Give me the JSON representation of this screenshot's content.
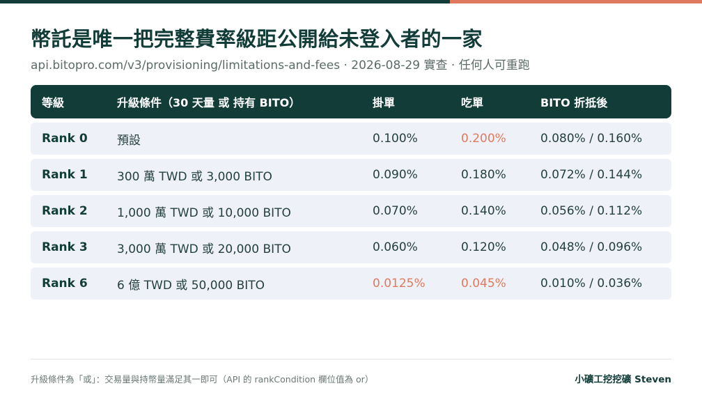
{
  "header": {
    "title": "幣託是唯一把完整費率級距公開給未登入者的一家",
    "subtitle": "api.bitopro.com/v3/provisioning/limitations-and-fees · 2026-08-29 實查 · 任何人可重跑"
  },
  "colors": {
    "primary": "#123c38",
    "accent": "#e07a5f",
    "row_bg": "#eef2f8"
  },
  "table": {
    "columns": [
      "等級",
      "升級條件（30 天量 或 持有 BITO）",
      "掛單",
      "吃單",
      "BITO 折抵後"
    ],
    "rows": [
      {
        "rank": "Rank 0",
        "condition": "預設",
        "maker": "0.100%",
        "taker": "0.200%",
        "bito": "0.080% / 0.160%",
        "maker_highlight": false,
        "taker_highlight": true
      },
      {
        "rank": "Rank 1",
        "condition": "300 萬 TWD 或 3,000 BITO",
        "maker": "0.090%",
        "taker": "0.180%",
        "bito": "0.072% / 0.144%",
        "maker_highlight": false,
        "taker_highlight": false
      },
      {
        "rank": "Rank 2",
        "condition": "1,000 萬 TWD 或 10,000 BITO",
        "maker": "0.070%",
        "taker": "0.140%",
        "bito": "0.056% / 0.112%",
        "maker_highlight": false,
        "taker_highlight": false
      },
      {
        "rank": "Rank 3",
        "condition": "3,000 萬 TWD 或 20,000 BITO",
        "maker": "0.060%",
        "taker": "0.120%",
        "bito": "0.048% / 0.096%",
        "maker_highlight": false,
        "taker_highlight": false
      },
      {
        "rank": "Rank 6",
        "condition": "6 億 TWD 或 50,000 BITO",
        "maker": "0.0125%",
        "taker": "0.045%",
        "bito": "0.010% / 0.036%",
        "maker_highlight": true,
        "taker_highlight": true
      }
    ]
  },
  "footer": {
    "note": "升級條件為「或」：交易量與持幣量滿足其一即可（API 的 rankCondition 欄位值為 or）",
    "brand": "小礦工挖挖礦 Steven"
  }
}
